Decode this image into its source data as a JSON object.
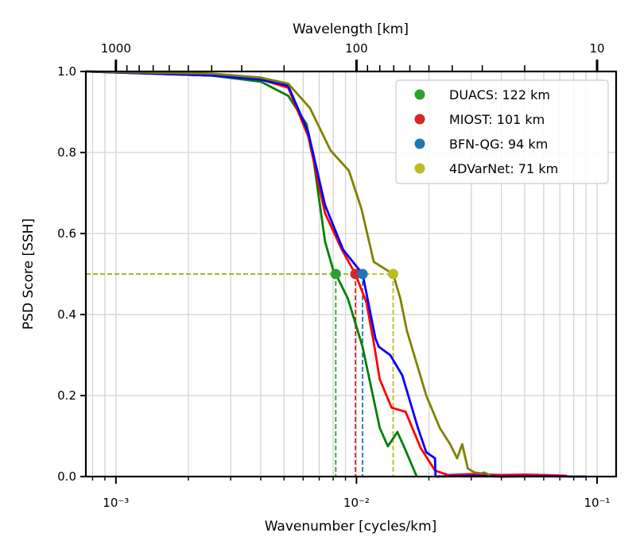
{
  "chart_data": {
    "type": "line",
    "xscale": "log",
    "xlabel": "Wavenumber [cycles/km]",
    "ylabel": "PSD Score [SSH]",
    "top_xlabel": "Wavelength [km]",
    "xlim": [
      0.00075,
      0.12
    ],
    "ylim": [
      0,
      1.0
    ],
    "grid": true,
    "x_tick_labels": [
      "10⁻³",
      "10⁻²",
      "10⁻¹"
    ],
    "x_ticks": [
      0.001,
      0.01,
      0.1
    ],
    "y_ticks": [
      0.0,
      0.2,
      0.4,
      0.6,
      0.8,
      1.0
    ],
    "y_tick_labels": [
      "0.0",
      "0.2",
      "0.4",
      "0.6",
      "0.8",
      "1.0"
    ],
    "top_ticks": [
      1000,
      100,
      10
    ],
    "top_tick_labels": [
      "1000",
      "100",
      "10"
    ],
    "threshold": 0.5,
    "legend_position": "top-right",
    "series": [
      {
        "name": "DUACS: 122 km",
        "line_color": "#008000",
        "marker_color": "#2ca02c",
        "marker_x": 0.0082,
        "points": [
          [
            0.00075,
            1.0
          ],
          [
            0.0025,
            0.99
          ],
          [
            0.004,
            0.975
          ],
          [
            0.0052,
            0.94
          ],
          [
            0.0062,
            0.87
          ],
          [
            0.0066,
            0.79
          ],
          [
            0.0074,
            0.58
          ],
          [
            0.008,
            0.51
          ],
          [
            0.0082,
            0.5
          ],
          [
            0.0092,
            0.44
          ],
          [
            0.0106,
            0.32
          ],
          [
            0.0125,
            0.12
          ],
          [
            0.0135,
            0.075
          ],
          [
            0.0148,
            0.11
          ],
          [
            0.016,
            0.065
          ],
          [
            0.0178,
            0.0
          ]
        ]
      },
      {
        "name": "MIOST: 101 km",
        "line_color": "#ff0000",
        "marker_color": "#d62728",
        "marker_x": 0.0099,
        "points": [
          [
            0.00075,
            1.0
          ],
          [
            0.0025,
            0.99
          ],
          [
            0.004,
            0.98
          ],
          [
            0.0052,
            0.96
          ],
          [
            0.0063,
            0.84
          ],
          [
            0.0074,
            0.65
          ],
          [
            0.0087,
            0.56
          ],
          [
            0.0099,
            0.5
          ],
          [
            0.011,
            0.43
          ],
          [
            0.0118,
            0.33
          ],
          [
            0.0125,
            0.24
          ],
          [
            0.014,
            0.17
          ],
          [
            0.016,
            0.16
          ],
          [
            0.0185,
            0.07
          ],
          [
            0.0212,
            0.015
          ],
          [
            0.024,
            0.004
          ],
          [
            0.03,
            0.006
          ],
          [
            0.04,
            0.004
          ],
          [
            0.05,
            0.005
          ],
          [
            0.06,
            0.004
          ],
          [
            0.075,
            0.002
          ]
        ]
      },
      {
        "name": "BFN-QG: 94 km",
        "line_color": "#0000ff",
        "marker_color": "#1f77b4",
        "marker_x": 0.0106,
        "points": [
          [
            0.00075,
            1.0
          ],
          [
            0.0025,
            0.99
          ],
          [
            0.004,
            0.98
          ],
          [
            0.0052,
            0.965
          ],
          [
            0.0063,
            0.85
          ],
          [
            0.0074,
            0.67
          ],
          [
            0.0088,
            0.56
          ],
          [
            0.0106,
            0.5
          ],
          [
            0.012,
            0.34
          ],
          [
            0.0124,
            0.32
          ],
          [
            0.0138,
            0.3
          ],
          [
            0.0155,
            0.25
          ],
          [
            0.018,
            0.12
          ],
          [
            0.0195,
            0.06
          ],
          [
            0.0212,
            0.045
          ],
          [
            0.0213,
            0.0
          ],
          [
            0.03,
            0.002
          ],
          [
            0.04,
            0.0
          ],
          [
            0.06,
            0.001
          ],
          [
            0.08,
            0.0
          ],
          [
            0.09,
            0.0
          ]
        ]
      },
      {
        "name": "4DVarNet: 71 km",
        "line_color": "#808000",
        "marker_color": "#bcbd22",
        "marker_x": 0.0142,
        "points": [
          [
            0.00075,
            1.0
          ],
          [
            0.0025,
            0.995
          ],
          [
            0.004,
            0.985
          ],
          [
            0.0052,
            0.97
          ],
          [
            0.0064,
            0.91
          ],
          [
            0.0078,
            0.805
          ],
          [
            0.0093,
            0.755
          ],
          [
            0.0105,
            0.66
          ],
          [
            0.0118,
            0.53
          ],
          [
            0.0142,
            0.5
          ],
          [
            0.0152,
            0.44
          ],
          [
            0.0162,
            0.36
          ],
          [
            0.0195,
            0.2
          ],
          [
            0.0222,
            0.12
          ],
          [
            0.0245,
            0.08
          ],
          [
            0.0262,
            0.045
          ],
          [
            0.0275,
            0.08
          ],
          [
            0.029,
            0.02
          ],
          [
            0.031,
            0.01
          ],
          [
            0.033,
            0.008
          ],
          [
            0.034,
            0.01
          ],
          [
            0.036,
            0.003
          ]
        ]
      }
    ]
  }
}
